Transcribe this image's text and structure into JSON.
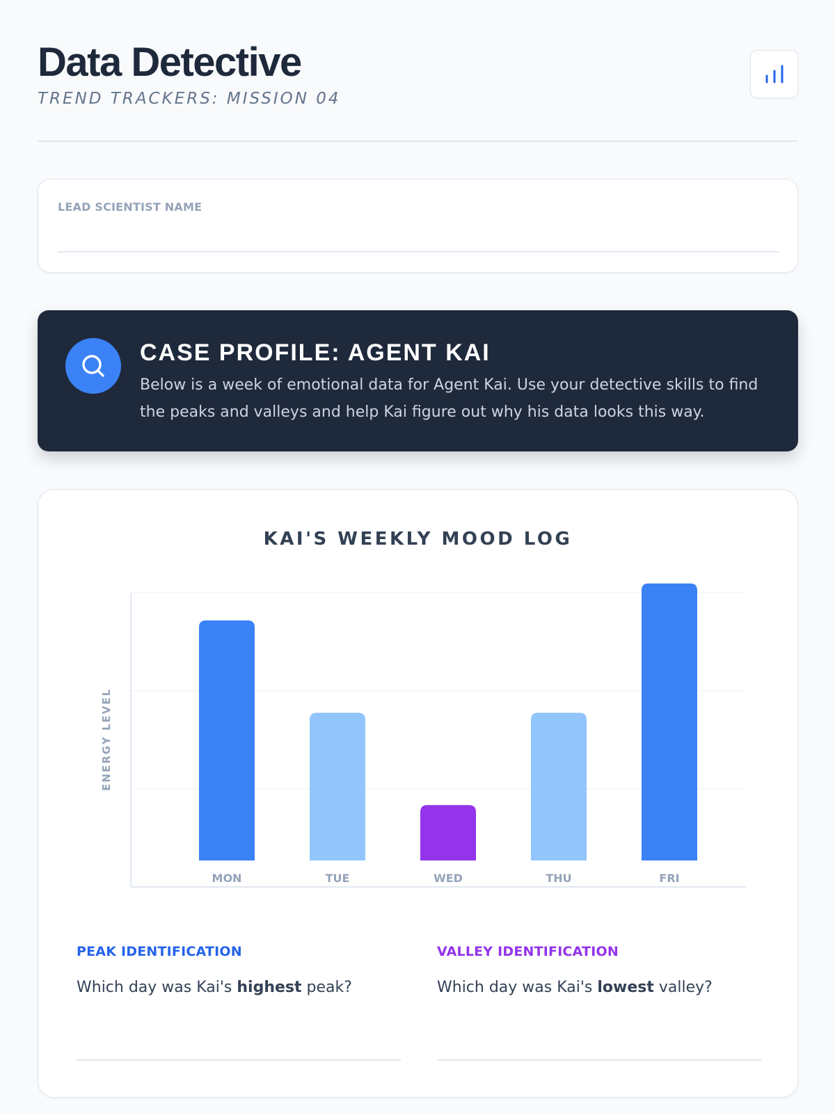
{
  "header": {
    "title": "Data Detective",
    "subtitle": "TREND TRACKERS: MISSION 04",
    "icon": "bar-chart-icon"
  },
  "name_field": {
    "label": "LEAD SCIENTIST NAME",
    "value": ""
  },
  "case_profile": {
    "icon": "search-icon",
    "title": "CASE PROFILE: AGENT KAI",
    "description": "Below is a week of emotional data for Agent Kai. Use your detective skills to find the peaks and valleys and help Kai figure out why his data looks this way."
  },
  "chart_data": {
    "type": "bar",
    "title": "KAI'S WEEKLY MOOD LOG",
    "xlabel": "",
    "ylabel": "ENERGY LEVEL",
    "categories": [
      "MON",
      "TUE",
      "WED",
      "THU",
      "FRI"
    ],
    "values": [
      2.6,
      1.6,
      0.6,
      1.6,
      3.0
    ],
    "ylim": [
      0,
      2.9
    ],
    "grid": true,
    "bar_colors": [
      "#3b82f6",
      "#93c5fd",
      "#9333ea",
      "#93c5fd",
      "#3b82f6"
    ]
  },
  "questions": {
    "peak": {
      "label": "PEAK IDENTIFICATION",
      "prefix": "Which day was Kai's ",
      "emphasis": "highest",
      "suffix": " peak?",
      "answer": ""
    },
    "valley": {
      "label": "VALLEY IDENTIFICATION",
      "prefix": "Which day was Kai's ",
      "emphasis": "lowest",
      "suffix": " valley?",
      "answer": ""
    }
  },
  "colors": {
    "accent": "#3b82f6",
    "valley": "#9333ea",
    "dark": "#1e293b"
  }
}
